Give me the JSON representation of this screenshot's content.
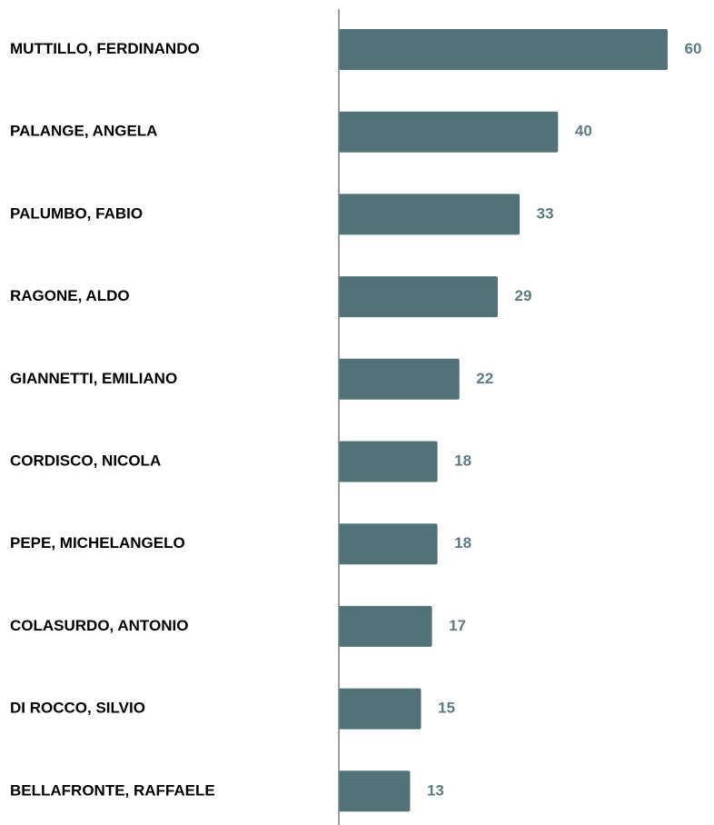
{
  "chart_data": {
    "type": "bar",
    "orientation": "horizontal",
    "categories": [
      "MUTTILLO, FERDINANDO",
      "PALANGE, ANGELA",
      "PALUMBO, FABIO",
      "RAGONE, ALDO",
      "GIANNETTI, EMILIANO",
      "CORDISCO, NICOLA",
      "PEPE, MICHELANGELO",
      "COLASURDO, ANTONIO",
      "DI ROCCO, SILVIO",
      "BELLAFRONTE, RAFFAELE"
    ],
    "values": [
      60,
      40,
      33,
      29,
      22,
      18,
      18,
      17,
      15,
      13
    ],
    "xlim": [
      0,
      60
    ],
    "grid": false,
    "legend": "none",
    "colors": {
      "bar": "#52727a",
      "value_label": "#5b7a83",
      "axis": "#7f7f7f"
    }
  }
}
